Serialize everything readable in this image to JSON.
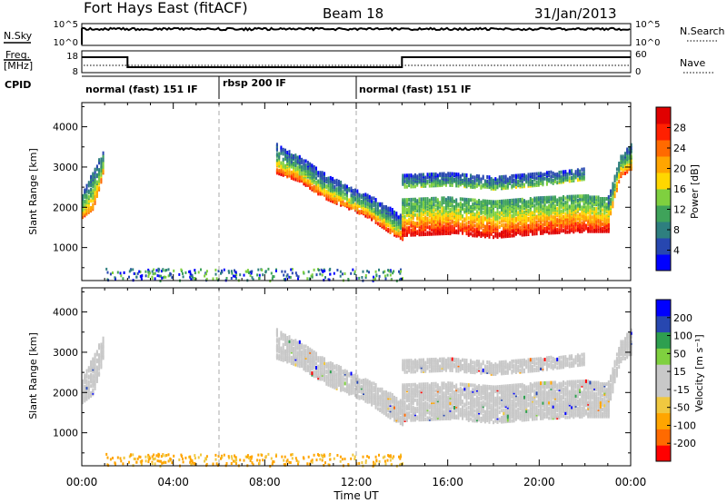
{
  "header": {
    "title": "Fort Hays East (fitACF)",
    "beam": "Beam 18",
    "date": "31/Jan/2013"
  },
  "top_panels": {
    "nsky_label": "N.Sky",
    "nsky_ticks": [
      "10^5",
      "10^0"
    ],
    "nsearch_label": "N.Search",
    "nsearch_ticks": [
      "10^5",
      "10^0"
    ],
    "freq_label_line1": "Freq.",
    "freq_label_line2": "[MHz]",
    "freq_ticks": [
      "18",
      "8"
    ],
    "nave_label": "Nave",
    "nave_ticks": [
      "60",
      "0"
    ],
    "freq_steps": [
      {
        "start": 0.0,
        "end": 2.0,
        "level": "high"
      },
      {
        "start": 2.0,
        "end": 14.0,
        "level": "low"
      },
      {
        "start": 14.0,
        "end": 24.0,
        "level": "high"
      }
    ]
  },
  "cpid": {
    "label": "CPID",
    "segments": [
      {
        "start": 0.0,
        "end": 6.0,
        "label": "normal (fast) 151 IF"
      },
      {
        "start": 6.0,
        "end": 12.0,
        "label": "rbsp 200 IF"
      },
      {
        "start": 12.0,
        "end": 24.0,
        "label": "normal (fast) 151 IF"
      }
    ]
  },
  "colors": {
    "power": [
      "#0000ff",
      "#2747b0",
      "#2e7f7f",
      "#3fa35a",
      "#7fd03f",
      "#ffd700",
      "#ffa500",
      "#ff6a00",
      "#ff2000",
      "#e00000"
    ],
    "velocity": [
      "#ff0000",
      "#ff6a00",
      "#ffa500",
      "#f0c840",
      "#c8c8c8",
      "#c8c8c8",
      "#7fd03f",
      "#2e9f4f",
      "#2747b0",
      "#0000ff"
    ],
    "ground": "#c8c8c8"
  },
  "chart_data": [
    {
      "type": "heatmap",
      "name": "power",
      "ylabel": "Slant Range [km]",
      "yticks": [
        "1000",
        "2000",
        "3000",
        "4000"
      ],
      "ylim": [
        180,
        4600
      ],
      "xlim": [
        0,
        24
      ],
      "colorbar": {
        "label": "Power [dB]",
        "ticks": [
          "4",
          "8",
          "12",
          "16",
          "20",
          "24",
          "28"
        ],
        "range": [
          0,
          30
        ]
      },
      "echo_bands": [
        {
          "x": [
            0.0,
            0.45,
            0.7,
            0.9
          ],
          "lo": [
            1800,
            2000,
            2400,
            2900
          ],
          "hi": [
            2400,
            2900,
            3200,
            3400
          ],
          "power_range": [
            6,
            22
          ]
        },
        {
          "x": [
            8.5,
            9.5,
            10.5,
            11.5,
            12.5,
            13.5,
            14.0
          ],
          "lo": [
            2900,
            2700,
            2300,
            2050,
            1800,
            1400,
            1250
          ],
          "hi": [
            3600,
            3300,
            2900,
            2600,
            2350,
            2000,
            1800
          ],
          "power_range": [
            4,
            26
          ]
        },
        {
          "x": [
            14.0,
            16.0,
            18.0,
            20.0,
            22.0,
            23.0
          ],
          "lo": [
            1350,
            1400,
            1300,
            1400,
            1450,
            1450
          ],
          "hi": [
            2250,
            2300,
            2200,
            2300,
            2350,
            2250
          ],
          "power_range": [
            10,
            30
          ]
        },
        {
          "x": [
            14.0,
            16.0,
            18.0,
            20.0,
            22.0
          ],
          "lo": [
            2550,
            2600,
            2500,
            2600,
            2750
          ],
          "hi": [
            2850,
            2900,
            2800,
            2900,
            3000
          ],
          "power_range": [
            4,
            14
          ]
        },
        {
          "x": [
            23.0,
            23.5,
            24.0
          ],
          "lo": [
            1600,
            2800,
            3000
          ],
          "hi": [
            2300,
            3300,
            3600
          ],
          "power_range": [
            6,
            24
          ]
        }
      ]
    },
    {
      "type": "heatmap",
      "name": "velocity",
      "ylabel": "Slant Range [km]",
      "yticks": [
        "1000",
        "2000",
        "3000",
        "4000"
      ],
      "ylim": [
        180,
        4600
      ],
      "xlim": [
        0,
        24
      ],
      "xticks": [
        "00:00",
        "04:00",
        "08:00",
        "12:00",
        "16:00",
        "20:00",
        "00:00"
      ],
      "xlabel": "Time UT",
      "colorbar": {
        "label": "Velocity [m s⁻¹]",
        "ticks": [
          "-200",
          "-100",
          "-50",
          "-15",
          "15",
          "50",
          "100",
          "200"
        ]
      }
    }
  ]
}
